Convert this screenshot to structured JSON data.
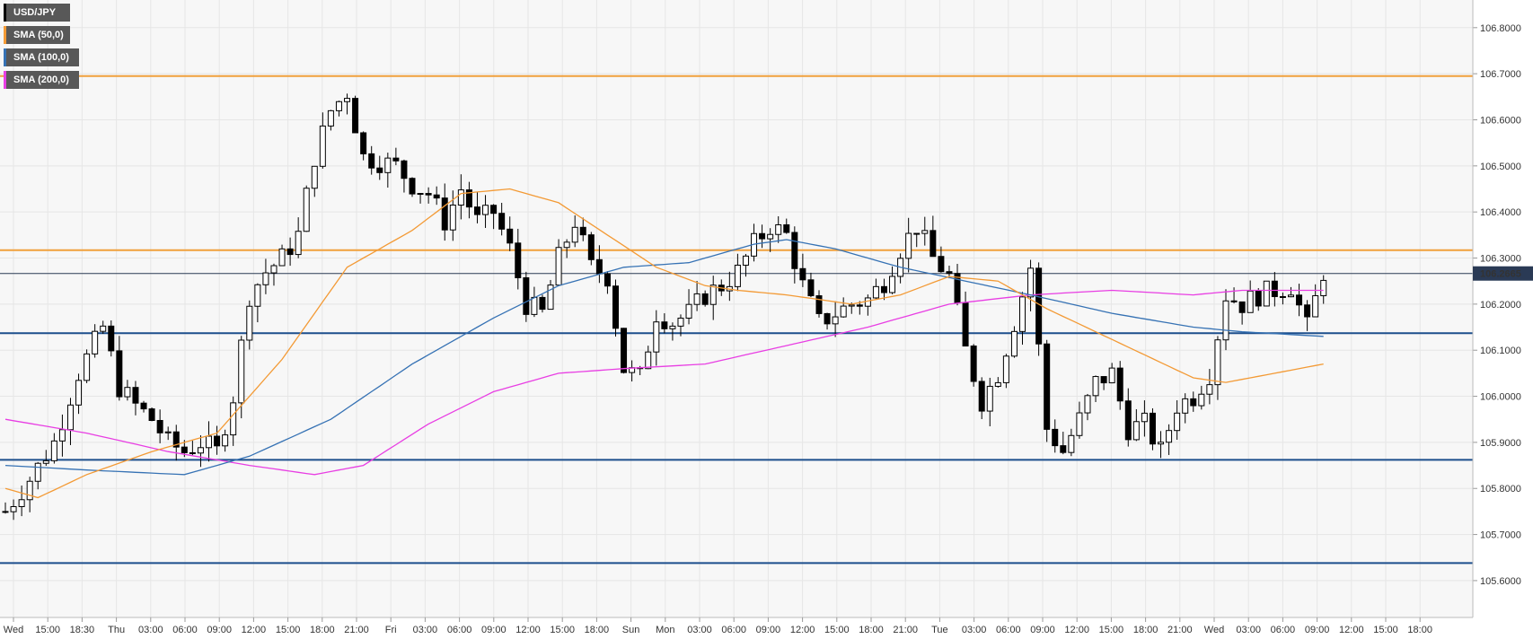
{
  "legend": {
    "symbol": "USD/JPY",
    "sma50": "SMA (50,0)",
    "sma100": "SMA (100,0)",
    "sma200": "SMA (200,0)"
  },
  "colors": {
    "background": "#f7f7f7",
    "grid": "#e6e6e6",
    "resistance": "#f0a03c",
    "support": "#1c4e8c",
    "sma50": "#f39a35",
    "sma100": "#3672b4",
    "sma200": "#e83ee3",
    "candle_up": "#ffffff",
    "candle_down": "#000000",
    "price_label_bg": "#2a3a55"
  },
  "chart_data": {
    "type": "candlestick",
    "ylim": [
      105.52,
      106.86
    ],
    "y_ticks": [
      "106.8000",
      "106.7000",
      "106.6000",
      "106.5000",
      "106.4000",
      "106.3000",
      "106.2000",
      "106.1000",
      "106.0000",
      "105.9000",
      "105.8000",
      "105.7000",
      "105.6000"
    ],
    "x_ticks": [
      "Wed",
      "15:00",
      "18:30",
      "Thu",
      "03:00",
      "06:00",
      "09:00",
      "12:00",
      "15:00",
      "18:00",
      "21:00",
      "Fri",
      "03:00",
      "06:00",
      "09:00",
      "12:00",
      "15:00",
      "18:00",
      "Sun",
      "Mon",
      "03:00",
      "06:00",
      "09:00",
      "12:00",
      "15:00",
      "18:00",
      "21:00",
      "Tue",
      "03:00",
      "06:00",
      "09:00",
      "12:00",
      "15:00",
      "18:00",
      "21:00",
      "Wed",
      "03:00",
      "06:00",
      "09:00",
      "12:00",
      "15:00",
      "18:00"
    ],
    "last_price": "106.2665",
    "resistance_levels": [
      106.695,
      106.317
    ],
    "support_levels": [
      106.137,
      105.862,
      105.638
    ],
    "ohlc_anchors": [
      [
        0,
        105.75
      ],
      [
        3,
        105.82
      ],
      [
        6,
        105.9
      ],
      [
        9,
        106.05
      ],
      [
        12,
        106.15
      ],
      [
        14,
        106.02
      ],
      [
        16,
        105.98
      ],
      [
        18,
        105.95
      ],
      [
        20,
        105.9
      ],
      [
        22,
        105.88
      ],
      [
        24,
        105.9
      ],
      [
        26,
        105.88
      ],
      [
        28,
        106.0
      ],
      [
        30,
        106.22
      ],
      [
        32,
        106.27
      ],
      [
        34,
        106.3
      ],
      [
        36,
        106.35
      ],
      [
        38,
        106.52
      ],
      [
        40,
        106.62
      ],
      [
        42,
        106.66
      ],
      [
        44,
        106.52
      ],
      [
        46,
        106.51
      ],
      [
        48,
        106.5
      ],
      [
        50,
        106.46
      ],
      [
        52,
        106.44
      ],
      [
        54,
        106.38
      ],
      [
        56,
        106.45
      ],
      [
        58,
        106.38
      ],
      [
        60,
        106.4
      ],
      [
        62,
        106.32
      ],
      [
        64,
        106.2
      ],
      [
        66,
        106.18
      ],
      [
        68,
        106.3
      ],
      [
        70,
        106.38
      ],
      [
        72,
        106.28
      ],
      [
        74,
        106.26
      ],
      [
        76,
        106.06
      ],
      [
        78,
        106.04
      ],
      [
        80,
        106.18
      ],
      [
        82,
        106.16
      ],
      [
        84,
        106.18
      ],
      [
        86,
        106.22
      ],
      [
        88,
        106.24
      ],
      [
        90,
        106.27
      ],
      [
        92,
        106.33
      ],
      [
        94,
        106.37
      ],
      [
        96,
        106.35
      ],
      [
        98,
        106.24
      ],
      [
        100,
        106.16
      ],
      [
        102,
        106.18
      ],
      [
        104,
        106.2
      ],
      [
        106,
        106.21
      ],
      [
        108,
        106.25
      ],
      [
        110,
        106.32
      ],
      [
        112,
        106.37
      ],
      [
        114,
        106.3
      ],
      [
        116,
        106.26
      ],
      [
        118,
        106.1
      ],
      [
        120,
        105.99
      ],
      [
        122,
        106.05
      ],
      [
        124,
        106.16
      ],
      [
        126,
        106.28
      ],
      [
        128,
        105.93
      ],
      [
        130,
        105.88
      ],
      [
        132,
        105.95
      ],
      [
        134,
        106.03
      ],
      [
        136,
        106.05
      ],
      [
        138,
        105.93
      ],
      [
        140,
        105.94
      ],
      [
        142,
        105.88
      ],
      [
        144,
        105.98
      ],
      [
        146,
        106.0
      ],
      [
        148,
        106.05
      ],
      [
        150,
        106.22
      ],
      [
        152,
        106.2
      ],
      [
        154,
        106.22
      ],
      [
        156,
        106.23
      ],
      [
        158,
        106.24
      ],
      [
        160,
        106.15
      ],
      [
        162,
        106.27
      ]
    ],
    "sma50_anchors": [
      [
        0,
        105.8
      ],
      [
        4,
        105.78
      ],
      [
        10,
        105.83
      ],
      [
        18,
        105.88
      ],
      [
        26,
        105.92
      ],
      [
        34,
        106.08
      ],
      [
        42,
        106.28
      ],
      [
        50,
        106.36
      ],
      [
        56,
        106.44
      ],
      [
        62,
        106.45
      ],
      [
        68,
        106.42
      ],
      [
        74,
        106.35
      ],
      [
        80,
        106.28
      ],
      [
        86,
        106.24
      ],
      [
        90,
        106.23
      ],
      [
        96,
        106.22
      ],
      [
        104,
        106.2
      ],
      [
        110,
        106.22
      ],
      [
        116,
        106.26
      ],
      [
        122,
        106.25
      ],
      [
        128,
        106.19
      ],
      [
        134,
        106.14
      ],
      [
        140,
        106.09
      ],
      [
        146,
        106.04
      ],
      [
        150,
        106.03
      ],
      [
        156,
        106.05
      ],
      [
        162,
        106.07
      ]
    ],
    "sma100_anchors": [
      [
        0,
        105.85
      ],
      [
        10,
        105.84
      ],
      [
        22,
        105.83
      ],
      [
        30,
        105.87
      ],
      [
        40,
        105.95
      ],
      [
        50,
        106.07
      ],
      [
        60,
        106.17
      ],
      [
        68,
        106.24
      ],
      [
        76,
        106.28
      ],
      [
        84,
        106.29
      ],
      [
        92,
        106.33
      ],
      [
        96,
        106.34
      ],
      [
        102,
        106.32
      ],
      [
        110,
        106.28
      ],
      [
        118,
        106.25
      ],
      [
        126,
        106.22
      ],
      [
        136,
        106.18
      ],
      [
        146,
        106.15
      ],
      [
        152,
        106.14
      ],
      [
        162,
        106.13
      ]
    ],
    "sma200_anchors": [
      [
        0,
        105.95
      ],
      [
        10,
        105.92
      ],
      [
        20,
        105.88
      ],
      [
        30,
        105.85
      ],
      [
        38,
        105.83
      ],
      [
        44,
        105.85
      ],
      [
        52,
        105.94
      ],
      [
        60,
        106.01
      ],
      [
        68,
        106.05
      ],
      [
        76,
        106.06
      ],
      [
        86,
        106.07
      ],
      [
        96,
        106.11
      ],
      [
        106,
        106.15
      ],
      [
        116,
        106.2
      ],
      [
        126,
        106.22
      ],
      [
        136,
        106.23
      ],
      [
        146,
        106.22
      ],
      [
        152,
        106.23
      ],
      [
        162,
        106.23
      ]
    ]
  }
}
